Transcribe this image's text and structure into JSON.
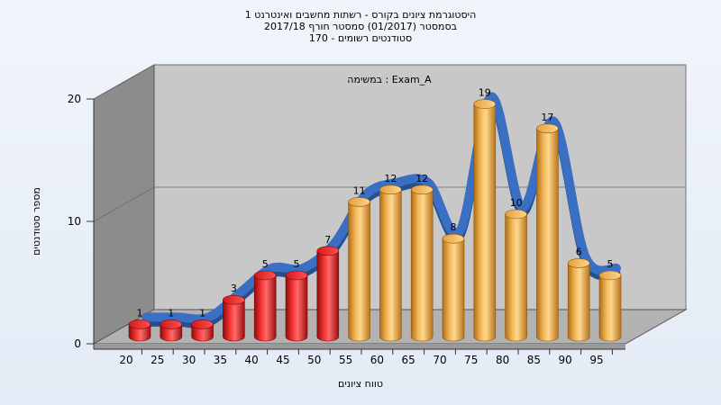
{
  "chart_data": {
    "type": "bar",
    "title_lines": [
      "היסטוגרמת ציונים בקורס - רשתות מחשבים ואינטרנט 1",
      "בסמסטר  (01/2017)  סמסטר חורף  2017/18",
      "סטודנטים רשומים - 170"
    ],
    "annotation": "במשימה : Exam_A",
    "xlabel": "טווח ציונים",
    "ylabel": "מספר סטודנטים",
    "ylim": [
      0,
      20
    ],
    "yticks": [
      0,
      10,
      20
    ],
    "categories": [
      "20",
      "25",
      "30",
      "35",
      "40",
      "45",
      "50",
      "55",
      "60",
      "65",
      "70",
      "75",
      "80",
      "85",
      "90",
      "95"
    ],
    "values": [
      1,
      1,
      1,
      3,
      5,
      5,
      7,
      11,
      12,
      12,
      8,
      19,
      10,
      17,
      6,
      5
    ],
    "fail_threshold_category": "55",
    "colors": {
      "fail": "#e61e1e",
      "pass": "#e8a53f",
      "curve": "#3a6fc4",
      "back_wall": "#c6c6c6",
      "side_wall": "#8a8a8a",
      "floor": "#b4b4b4"
    }
  }
}
